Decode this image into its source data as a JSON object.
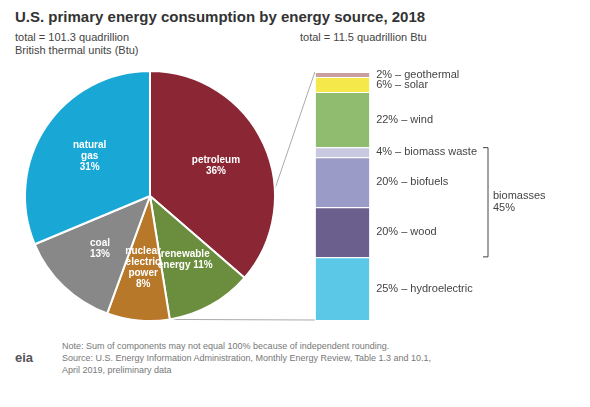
{
  "chart_data": [
    {
      "type": "pie",
      "title": "U.S. primary energy consumption by energy source, 2018",
      "subtitle": "total = 101.3 quadrillion\nBritish thermal units (Btu)",
      "categories": [
        "petroleum\n36%",
        "renewable\nenergy 11%",
        "nuclear\nelectric\npower\n8%",
        "coal\n13%",
        "natural\ngas\n31%"
      ],
      "values": [
        36,
        11,
        8,
        13,
        31
      ],
      "colors": [
        "#8B2635",
        "#6B8E3E",
        "#B8782A",
        "#888888",
        "#19A8D6"
      ],
      "annotations": [
        "Note: Sum of components may not equal 100% because of independent rounding.\nSource: U.S. Energy Information Administration, Monthly Energy Review, Table 1.3 and 10.1,\nApril 2019, preliminary data",
        "eia"
      ]
    },
    {
      "type": "bar",
      "stacked": true,
      "subtitle": "total = 11.5 quadrillion Btu",
      "categories": [
        null
      ],
      "series": [
        {
          "name": "25% – hydroelectric",
          "color": "#5BC8E8",
          "values": [
            25
          ]
        },
        {
          "name": "20% – wood",
          "color": "#6B5F8E",
          "values": [
            20
          ]
        },
        {
          "name": "20% – biofuels",
          "color": "#9B9BC8",
          "values": [
            20
          ]
        },
        {
          "name": "4% – biomass waste",
          "color": "#C8C8E0",
          "values": [
            4
          ]
        },
        {
          "name": "22% – wind",
          "color": "#8FBC6E",
          "values": [
            22
          ]
        },
        {
          "name": "6% – solar",
          "color": "#F5E84A",
          "values": [
            6
          ]
        },
        {
          "name": "2% – geothermal",
          "color": "#C8A0A0",
          "values": [
            2
          ]
        }
      ],
      "ylim": [
        0,
        99
      ],
      "tick_labels": false,
      "annotations": [
        {
          "text": "biomasses\n45%",
          "series": [
            "20% – wood",
            "20% – biofuels",
            "4% – biomass waste"
          ]
        }
      ]
    }
  ]
}
